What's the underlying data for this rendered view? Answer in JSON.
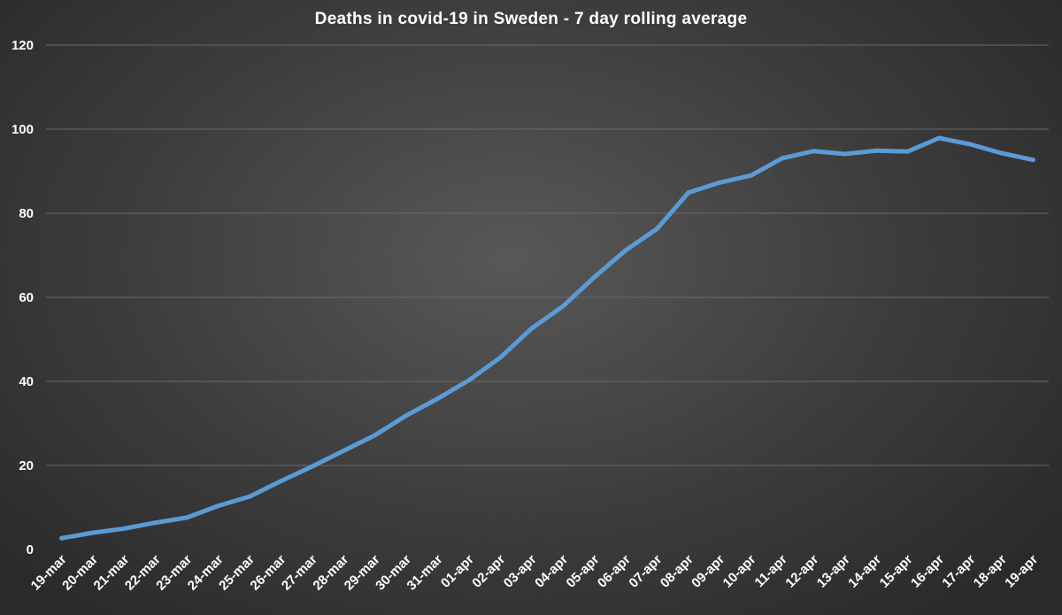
{
  "chart_data": {
    "type": "line",
    "title": "Deaths in covid-19 in Sweden - 7 day rolling average",
    "xlabel": "",
    "ylabel": "",
    "ylim": [
      0,
      120
    ],
    "yticks": [
      0,
      20,
      40,
      60,
      80,
      100,
      120
    ],
    "grid": true,
    "categories": [
      "19-mar",
      "20-mar",
      "21-mar",
      "22-mar",
      "23-mar",
      "24-mar",
      "25-mar",
      "26-mar",
      "27-mar",
      "28-mar",
      "29-mar",
      "30-mar",
      "31-mar",
      "01-apr",
      "02-apr",
      "03-apr",
      "04-apr",
      "05-apr",
      "06-apr",
      "07-apr",
      "08-apr",
      "09-apr",
      "10-apr",
      "11-apr",
      "12-apr",
      "13-apr",
      "14-apr",
      "15-apr",
      "16-apr",
      "17-apr",
      "18-apr",
      "19-apr"
    ],
    "series": [
      {
        "name": "7 day rolling average",
        "color": "#5b9bd5",
        "values": [
          2.7,
          4.0,
          5.0,
          6.4,
          7.6,
          10.4,
          12.6,
          16.3,
          19.8,
          23.5,
          27.2,
          31.9,
          35.9,
          40.3,
          45.7,
          52.6,
          57.9,
          64.8,
          71.2,
          76.3,
          84.9,
          87.3,
          89.0,
          93.1,
          94.8,
          94.1,
          94.9,
          94.7,
          97.9,
          96.4,
          94.3,
          92.7
        ]
      }
    ]
  }
}
